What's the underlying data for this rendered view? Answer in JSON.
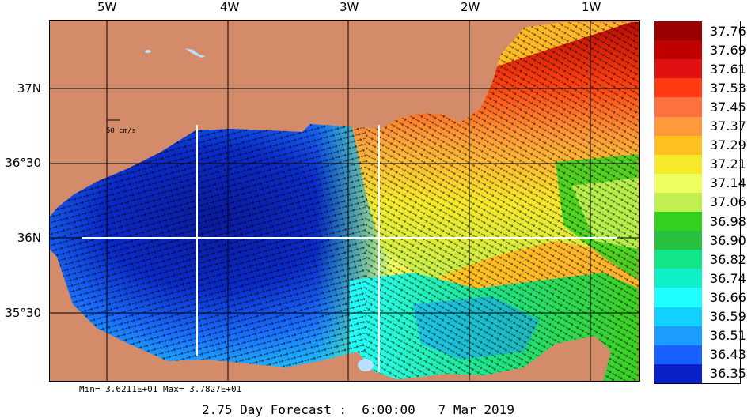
{
  "map": {
    "lon_labels": [
      "5W",
      "4W",
      "3W",
      "2W",
      "1W"
    ],
    "lat_labels": [
      "37N",
      "36°30",
      "36N",
      "35°30"
    ],
    "scale_label": "50 cm/s",
    "stats": "Min= 3.6211E+01  Max= 3.7827E+01",
    "footer": "2.75 Day Forecast :  6:00:00   7 Mar 2019",
    "land_color": "#d48b6a",
    "water_color": "#b9e0ff"
  },
  "colorbar": {
    "values": [
      "37.76",
      "37.69",
      "37.61",
      "37.53",
      "37.45",
      "37.37",
      "37.29",
      "37.21",
      "37.14",
      "37.06",
      "36.98",
      "36.90",
      "36.82",
      "36.74",
      "36.66",
      "36.59",
      "36.51",
      "36.43",
      "36.35"
    ],
    "colors": [
      "#9a0000",
      "#c00000",
      "#e01010",
      "#ff3a10",
      "#ff7040",
      "#ff9a3a",
      "#ffc020",
      "#f6ea2a",
      "#eeff60",
      "#c0f050",
      "#34d020",
      "#28c040",
      "#12e48a",
      "#10f0c8",
      "#20ffff",
      "#12d0ff",
      "#1a9dff",
      "#1a60ff",
      "#0a20c8"
    ]
  }
}
